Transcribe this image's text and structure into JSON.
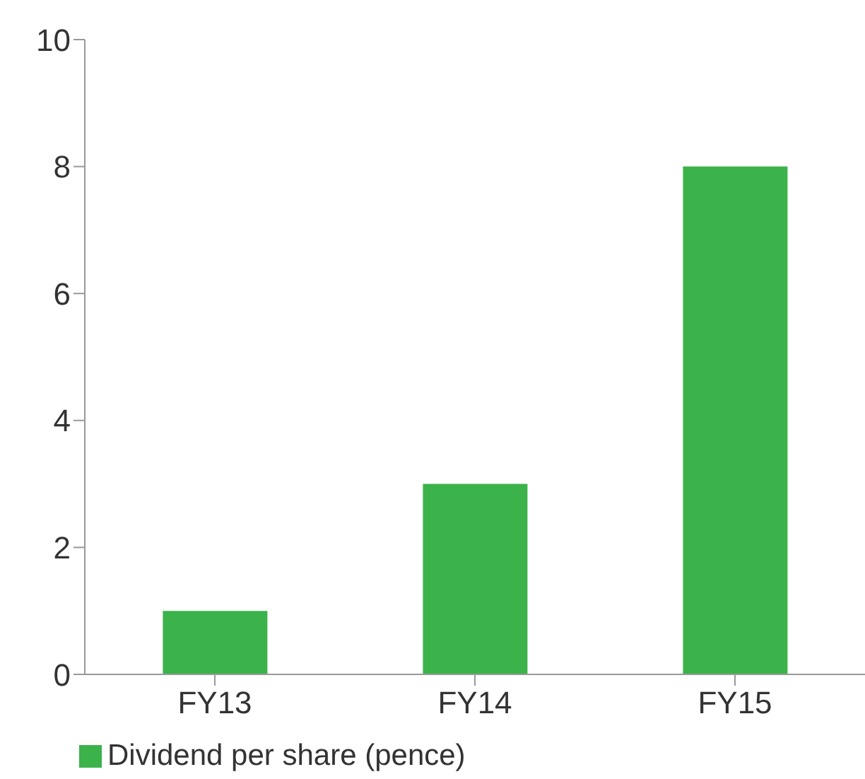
{
  "chart_data": {
    "type": "bar",
    "categories": [
      "FY13",
      "FY14",
      "FY15"
    ],
    "series": [
      {
        "name": "Dividend per share (pence)",
        "color": "#3bb34a",
        "values": [
          1,
          3,
          8
        ]
      }
    ],
    "ylim": [
      0,
      10
    ],
    "yticks": [
      0,
      2,
      4,
      6,
      8,
      10
    ],
    "grid": false,
    "legend": "bottom left"
  }
}
